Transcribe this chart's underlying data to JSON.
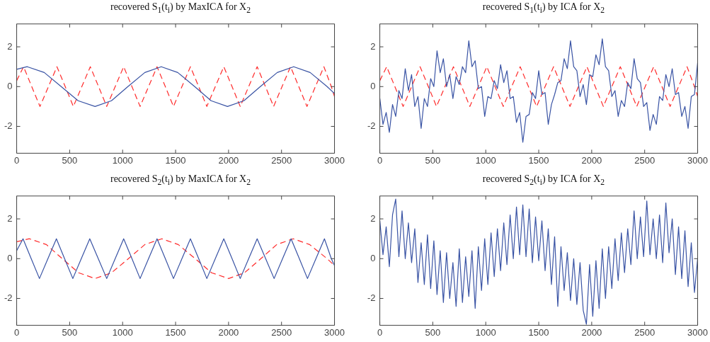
{
  "chart_data": [
    {
      "type": "line",
      "title": "recovered S$_{1}$(t$_{i}$) by MaxICA for X$_{2}$",
      "xlim": [
        0,
        3000
      ],
      "xticks": [
        0,
        500,
        1000,
        1500,
        2000,
        2500,
        3000
      ],
      "ylim": [
        -3.35,
        3.15
      ],
      "yticks": [
        -2,
        0,
        2
      ],
      "grid": false,
      "series": [
        {
          "color": "#3953a4",
          "line_style": "solid",
          "x": [
            0,
            100,
            260,
            420,
            580,
            740,
            895,
            1050,
            1210,
            1365,
            1520,
            1680,
            1835,
            1990,
            2145,
            2300,
            2460,
            2615,
            2770,
            2930,
            3000
          ],
          "values": [
            0.87,
            1,
            0.71,
            0,
            -0.71,
            -1,
            -0.71,
            0,
            0.71,
            1,
            0.71,
            0,
            -0.71,
            -1,
            -0.71,
            0,
            0.71,
            1,
            0.71,
            0,
            -0.35
          ]
        },
        {
          "color": "#ff2a2a",
          "line_style": "dashed",
          "x": [
            0,
            65,
            142,
            220,
            300,
            380,
            458,
            535,
            615,
            695,
            773,
            850,
            930,
            1010,
            1088,
            1165,
            1245,
            1325,
            1403,
            1480,
            1560,
            1640,
            1718,
            1795,
            1875,
            1955,
            2033,
            2110,
            2190,
            2270,
            2348,
            2425,
            2505,
            2585,
            2663,
            2740,
            2820,
            2900,
            2970,
            3000
          ],
          "values": [
            0.3,
            1,
            0,
            -1,
            0,
            1,
            0,
            -1,
            0,
            1,
            0,
            -1,
            0,
            1,
            0,
            -1,
            0,
            1,
            0,
            -1,
            0,
            1,
            0,
            -1,
            0,
            1,
            0,
            -1,
            0,
            1,
            0,
            -1,
            0,
            1,
            0,
            -1,
            0,
            1,
            0,
            -0.5
          ]
        }
      ]
    },
    {
      "type": "line",
      "title": "recovered S$_{1}$(t$_{i}$) by ICA for X$_{2}$",
      "xlim": [
        0,
        3000
      ],
      "xticks": [
        0,
        500,
        1000,
        1500,
        2000,
        2500,
        3000
      ],
      "ylim": [
        -3.35,
        3.15
      ],
      "yticks": [
        -2,
        0,
        2
      ],
      "grid": false,
      "series": [
        {
          "color": "#3953a4",
          "line_style": "solid",
          "x": [
            0,
            30,
            60,
            90,
            120,
            150,
            180,
            210,
            240,
            270,
            300,
            330,
            360,
            390,
            420,
            450,
            480,
            510,
            540,
            570,
            600,
            630,
            660,
            690,
            720,
            750,
            780,
            810,
            840,
            870,
            900,
            930,
            960,
            990,
            1020,
            1050,
            1080,
            1110,
            1140,
            1170,
            1200,
            1230,
            1260,
            1290,
            1320,
            1350,
            1380,
            1410,
            1440,
            1470,
            1500,
            1530,
            1560,
            1590,
            1620,
            1650,
            1680,
            1710,
            1740,
            1770,
            1800,
            1830,
            1860,
            1890,
            1920,
            1950,
            1980,
            2010,
            2040,
            2070,
            2100,
            2130,
            2160,
            2190,
            2220,
            2250,
            2280,
            2310,
            2340,
            2370,
            2400,
            2430,
            2460,
            2490,
            2520,
            2550,
            2580,
            2610,
            2640,
            2670,
            2700,
            2730,
            2760,
            2790,
            2820,
            2850,
            2880,
            2910,
            2940,
            2970,
            3000
          ],
          "values": [
            -0.6,
            -1.9,
            -1.3,
            -2.3,
            -0.9,
            -1.5,
            -0.2,
            -0.6,
            0.9,
            -0.2,
            0.6,
            -1.0,
            -0.5,
            -2.1,
            -0.6,
            -1.0,
            0.4,
            0.0,
            1.8,
            0.7,
            1.4,
            0.0,
            0.6,
            -0.6,
            0.5,
            0.1,
            1.0,
            0.7,
            2.3,
            1.0,
            1.3,
            -0.1,
            0.0,
            -1.5,
            -0.5,
            -0.6,
            0.3,
            -0.1,
            1.1,
            0.2,
            0.8,
            -0.6,
            -0.5,
            -1.8,
            -1.3,
            -2.8,
            -1.5,
            -1.4,
            -0.3,
            -0.6,
            0.8,
            -0.4,
            -0.3,
            -1.9,
            -0.9,
            -0.4,
            0.2,
            0.3,
            1.4,
            0.9,
            2.3,
            1.0,
            0.8,
            -0.5,
            0.1,
            -0.9,
            0.6,
            0.5,
            1.6,
            1.1,
            2.4,
            1.0,
            0.8,
            -0.5,
            -0.2,
            -1.5,
            -0.7,
            -1.0,
            0.2,
            -0.1,
            1.4,
            0.4,
            0.2,
            -1.0,
            -0.8,
            -2.2,
            -1.4,
            -1.9,
            -0.5,
            -0.7,
            0.6,
            0.0,
            0.9,
            -0.4,
            -0.3,
            -1.5,
            -1.0,
            -2.1,
            -0.5,
            -0.4,
            1.2
          ]
        },
        {
          "color": "#ff2a2a",
          "line_style": "dashed",
          "x": [
            0,
            65,
            142,
            220,
            300,
            380,
            458,
            535,
            615,
            695,
            773,
            850,
            930,
            1010,
            1088,
            1165,
            1245,
            1325,
            1403,
            1480,
            1560,
            1640,
            1718,
            1795,
            1875,
            1955,
            2033,
            2110,
            2190,
            2270,
            2348,
            2425,
            2505,
            2585,
            2663,
            2740,
            2820,
            2900,
            2970,
            3000
          ],
          "values": [
            0.3,
            1,
            0,
            -1,
            0,
            1,
            0,
            -1,
            0,
            1,
            0,
            -1,
            0,
            1,
            0,
            -1,
            0,
            1,
            0,
            -1,
            0,
            1,
            0,
            -1,
            0,
            1,
            0,
            -1,
            0,
            1,
            0,
            -1,
            0,
            1,
            0,
            -1,
            0,
            1,
            0,
            -0.5
          ]
        }
      ]
    },
    {
      "type": "line",
      "title": "recovered S$_{2}$(t$_{i}$) by MaxICA for X$_{2}$",
      "xlim": [
        0,
        3000
      ],
      "xticks": [
        0,
        500,
        1000,
        1500,
        2000,
        2500,
        3000
      ],
      "ylim": [
        -3.35,
        3.15
      ],
      "yticks": [
        -2,
        0,
        2
      ],
      "grid": false,
      "series": [
        {
          "color": "#3953a4",
          "line_style": "solid",
          "x": [
            0,
            60,
            137,
            215,
            295,
            375,
            452,
            530,
            610,
            690,
            770,
            850,
            930,
            1010,
            1088,
            1165,
            1245,
            1325,
            1403,
            1480,
            1560,
            1640,
            1718,
            1795,
            1875,
            1955,
            2033,
            2110,
            2190,
            2270,
            2350,
            2430,
            2510,
            2590,
            2668,
            2745,
            2825,
            2905,
            2970,
            3000
          ],
          "values": [
            0.4,
            1,
            0,
            -1,
            0,
            1,
            0,
            -1,
            0,
            1,
            0,
            -1,
            0,
            1,
            0,
            -1,
            0,
            1,
            0,
            -1,
            0,
            1,
            0,
            -1,
            0,
            1,
            0,
            -1,
            0,
            1,
            0,
            -1,
            0,
            1,
            0,
            -1,
            0,
            1,
            0,
            -0.35
          ]
        },
        {
          "color": "#ff2a2a",
          "line_style": "dashed",
          "x": [
            0,
            120,
            280,
            430,
            585,
            740,
            895,
            1055,
            1210,
            1370,
            1525,
            1685,
            1840,
            2000,
            2150,
            2305,
            2455,
            2610,
            2765,
            2930,
            3000
          ],
          "values": [
            0.85,
            1,
            0.71,
            0,
            -0.71,
            -1,
            -0.71,
            0,
            0.71,
            1,
            0.71,
            0,
            -0.71,
            -1,
            -0.71,
            0,
            0.71,
            1,
            0.71,
            0,
            -0.35
          ]
        }
      ]
    },
    {
      "type": "line",
      "title": "recovered S$_{2}$(t$_{i}$) by ICA for X$_{2}$",
      "xlim": [
        0,
        3000
      ],
      "xticks": [
        0,
        500,
        1000,
        1500,
        2000,
        2500,
        3000
      ],
      "ylim": [
        -3.35,
        3.15
      ],
      "yticks": [
        -2,
        0,
        2
      ],
      "grid": false,
      "series": [
        {
          "color": "#3953a4",
          "line_style": "solid",
          "x": [
            0,
            30,
            60,
            90,
            120,
            150,
            180,
            210,
            240,
            270,
            300,
            330,
            360,
            390,
            420,
            450,
            480,
            510,
            540,
            570,
            600,
            630,
            660,
            690,
            720,
            750,
            780,
            810,
            840,
            870,
            900,
            930,
            960,
            990,
            1020,
            1050,
            1080,
            1110,
            1140,
            1170,
            1200,
            1230,
            1260,
            1290,
            1320,
            1350,
            1380,
            1410,
            1440,
            1470,
            1500,
            1530,
            1560,
            1590,
            1620,
            1650,
            1680,
            1710,
            1740,
            1770,
            1800,
            1830,
            1860,
            1890,
            1920,
            1950,
            1980,
            2010,
            2040,
            2070,
            2100,
            2130,
            2160,
            2190,
            2220,
            2250,
            2280,
            2310,
            2340,
            2370,
            2400,
            2430,
            2460,
            2490,
            2520,
            2550,
            2580,
            2610,
            2640,
            2670,
            2700,
            2730,
            2760,
            2790,
            2820,
            2850,
            2880,
            2910,
            2940,
            2970,
            3000
          ],
          "values": [
            1.9,
            0.2,
            1.6,
            -0.4,
            2.2,
            3.0,
            0.1,
            2.4,
            0.0,
            1.8,
            -0.2,
            1.5,
            -1.2,
            0.8,
            -1.3,
            1.2,
            -1.5,
            0.9,
            -1.8,
            0.4,
            -2.2,
            0.3,
            -2.0,
            -0.2,
            -2.4,
            0.5,
            -2.2,
            0.1,
            -1.9,
            0.4,
            -2.5,
            0.6,
            -1.6,
            1.0,
            -1.3,
            1.3,
            -0.9,
            1.5,
            -0.6,
            1.8,
            -0.3,
            2.2,
            0.0,
            2.6,
            0.2,
            2.7,
            0.1,
            2.5,
            -0.2,
            2.1,
            -0.1,
            1.9,
            -0.6,
            1.5,
            -1.3,
            1.1,
            -2.4,
            0.6,
            -1.6,
            0.3,
            -2.1,
            0.0,
            -2.3,
            -0.2,
            -2.6,
            -3.3,
            -0.3,
            -2.9,
            -0.1,
            -2.5,
            0.5,
            -2.0,
            0.6,
            -1.5,
            1.0,
            -1.1,
            1.3,
            -0.7,
            1.5,
            -0.3,
            2.4,
            0.0,
            2.1,
            0.1,
            2.9,
            0.2,
            2.0,
            0.0,
            2.2,
            -0.2,
            2.8,
            0.3,
            2.0,
            -0.8,
            1.6,
            -1.0,
            1.4,
            -1.4,
            0.8,
            -1.7,
            0.0
          ]
        }
      ]
    }
  ]
}
